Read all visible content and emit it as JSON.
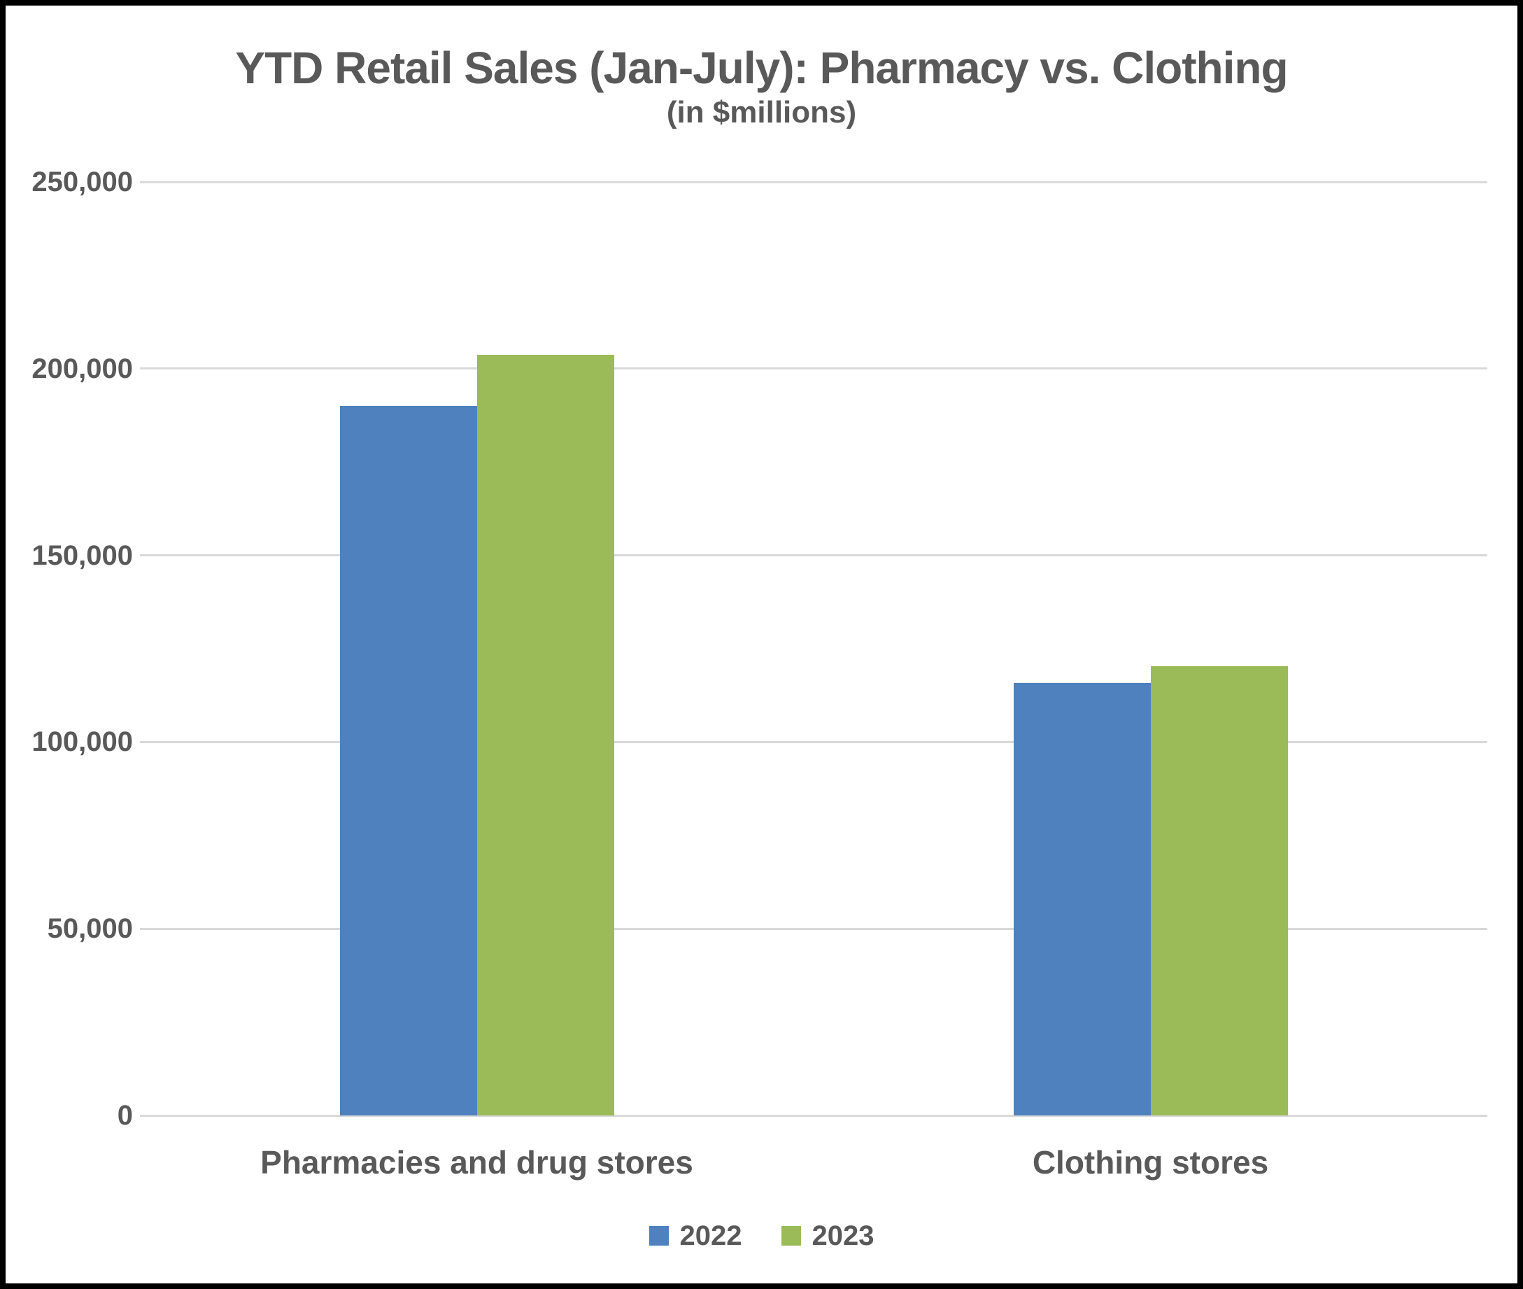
{
  "chart_data": {
    "type": "bar",
    "title": "YTD Retail Sales (Jan-July): Pharmacy vs. Clothing",
    "subtitle": "(in $millions)",
    "categories": [
      "Pharmacies and drug stores",
      "Clothing stores"
    ],
    "series": [
      {
        "name": "2022",
        "color": "#4E81BD",
        "values": [
          190000,
          115800
        ]
      },
      {
        "name": "2023",
        "color": "#9BBB59",
        "values": [
          203800,
          120300
        ]
      }
    ],
    "xlabel": "",
    "ylabel": "",
    "ylim": [
      0,
      250000
    ],
    "ytick_interval": 50000,
    "ytick_labels": [
      "0",
      "50,000",
      "100,000",
      "150,000",
      "200,000",
      "250,000"
    ],
    "grid": true,
    "legend_position": "bottom-center",
    "colors": {
      "text": "#595959",
      "gridline": "#D9D9D9",
      "background": "#FFFFFF",
      "frame_border": "#000000"
    }
  }
}
